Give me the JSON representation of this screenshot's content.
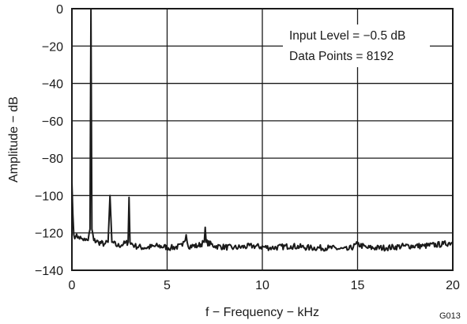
{
  "chart_data": {
    "type": "line",
    "title": "",
    "xlabel": "f − Frequency − kHz",
    "ylabel": "Amplitude − dB",
    "xlim": [
      0,
      20
    ],
    "ylim": [
      -140,
      0
    ],
    "x_ticks": [
      0,
      5,
      10,
      15,
      20
    ],
    "y_ticks": [
      0,
      -20,
      -40,
      -60,
      -80,
      -100,
      -120,
      -140
    ],
    "y_tick_labels": [
      "0",
      "−20",
      "−40",
      "−60",
      "−80",
      "−100",
      "−120",
      "−140"
    ],
    "grid": true,
    "noise_floor_db": -127,
    "series": [
      {
        "color": "#1a1a1a",
        "points": [
          [
            0.0,
            -93
          ],
          [
            0.05,
            -110
          ],
          [
            0.1,
            -121
          ],
          [
            0.2,
            -122
          ],
          [
            0.35,
            -122
          ],
          [
            0.5,
            -123
          ],
          [
            0.7,
            -124
          ],
          [
            0.85,
            -124
          ],
          [
            0.95,
            -118
          ],
          [
            1.0,
            -0.5
          ],
          [
            1.05,
            -118
          ],
          [
            1.15,
            -124
          ],
          [
            1.4,
            -125
          ],
          [
            1.7,
            -126
          ],
          [
            1.9,
            -125
          ],
          [
            2.0,
            -100
          ],
          [
            2.1,
            -125
          ],
          [
            2.4,
            -127
          ],
          [
            2.7,
            -126
          ],
          [
            2.95,
            -125
          ],
          [
            3.0,
            -101
          ],
          [
            3.05,
            -125
          ],
          [
            3.3,
            -127
          ],
          [
            3.8,
            -128
          ],
          [
            4.5,
            -127
          ],
          [
            5.2,
            -128
          ],
          [
            5.8,
            -127
          ],
          [
            6.0,
            -121
          ],
          [
            6.1,
            -127
          ],
          [
            6.6,
            -127
          ],
          [
            6.95,
            -125
          ],
          [
            7.0,
            -117
          ],
          [
            7.05,
            -125
          ],
          [
            7.5,
            -127
          ],
          [
            8.5,
            -128
          ],
          [
            9.5,
            -127
          ],
          [
            10.5,
            -128
          ],
          [
            11.5,
            -127
          ],
          [
            12.5,
            -128
          ],
          [
            13.5,
            -128
          ],
          [
            14.5,
            -129
          ],
          [
            15.0,
            -126
          ],
          [
            15.5,
            -128
          ],
          [
            16.5,
            -128
          ],
          [
            17.5,
            -127
          ],
          [
            18.5,
            -127
          ],
          [
            19.5,
            -126
          ],
          [
            20.0,
            -125
          ]
        ]
      }
    ]
  },
  "annotations": {
    "input_level": "Input Level = −0.5 dB",
    "data_points": "Data Points = 8192"
  },
  "figure_code": "G013"
}
